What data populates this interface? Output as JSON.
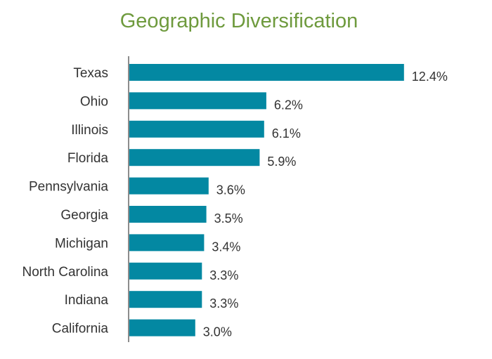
{
  "chart_data": {
    "type": "bar",
    "orientation": "horizontal",
    "title": "Geographic Diversification",
    "xlabel": "",
    "ylabel": "",
    "categories": [
      "Texas",
      "Ohio",
      "Illinois",
      "Florida",
      "Pennsylvania",
      "Georgia",
      "Michigan",
      "North Carolina",
      "Indiana",
      "California"
    ],
    "values": [
      12.4,
      6.2,
      6.1,
      5.9,
      3.6,
      3.5,
      3.4,
      3.3,
      3.3,
      3.0
    ],
    "value_labels": [
      "12.4%",
      "6.2%",
      "6.1%",
      "5.9%",
      "3.6%",
      "3.5%",
      "3.4%",
      "3.3%",
      "3.3%",
      "3.0%"
    ],
    "xlim": [
      0,
      14
    ],
    "grid": false,
    "legend": "none",
    "colors": {
      "bar": "#0388a2",
      "title": "#6e9a3d",
      "axis": "#8c8c8c",
      "text": "#333333"
    }
  }
}
